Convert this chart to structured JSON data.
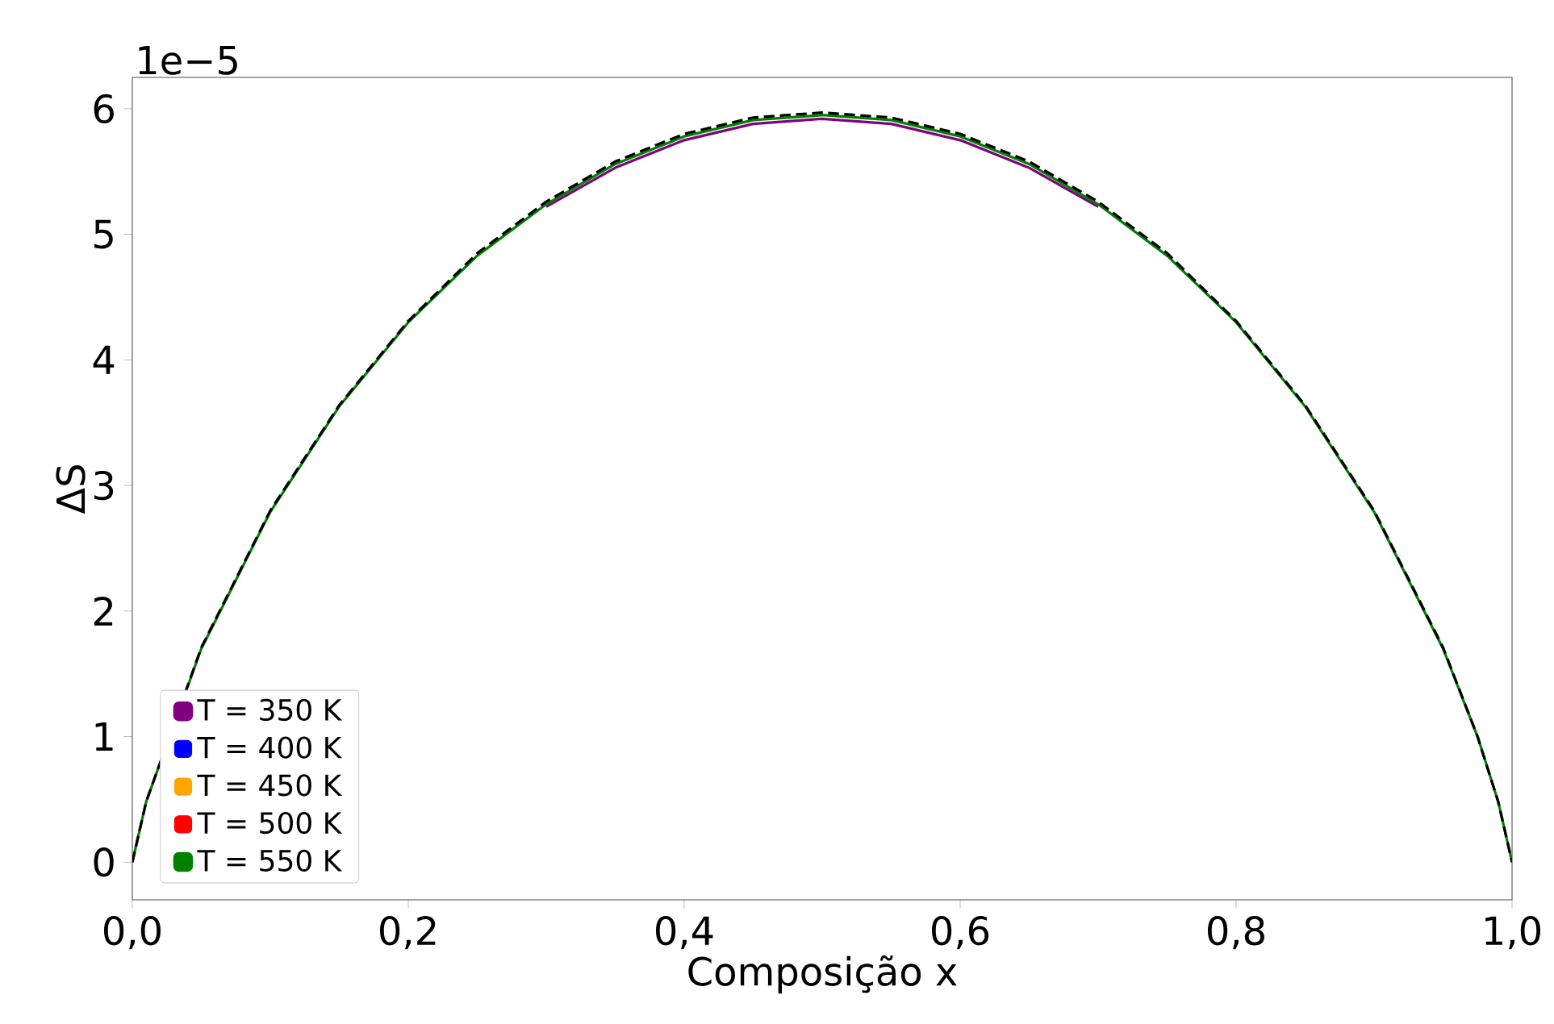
{
  "chart_data": {
    "type": "line",
    "xlabel": "Composição x",
    "ylabel": "ΔS",
    "annotations": [
      "1e−5"
    ],
    "x": [
      0,
      0.01,
      0.025,
      0.05,
      0.1,
      0.15,
      0.2,
      0.25,
      0.3,
      0.35,
      0.4,
      0.45,
      0.5,
      0.55,
      0.6,
      0.65,
      0.7,
      0.75,
      0.8,
      0.85,
      0.9,
      0.95,
      0.975,
      0.99,
      1
    ],
    "series": [
      {
        "name": "T = 350 K",
        "color": "#800080",
        "values": [
          null,
          null,
          null,
          null,
          null,
          null,
          null,
          null,
          5.22,
          5.53,
          5.75,
          5.88,
          5.92,
          5.88,
          5.75,
          5.53,
          5.22,
          null,
          null,
          null,
          null,
          null,
          null,
          null,
          null
        ]
      },
      {
        "name": "T = 400 K",
        "color": "#0000ff",
        "values": [
          null,
          null,
          null,
          null,
          null,
          null,
          null,
          null,
          null,
          null,
          null,
          null,
          null,
          null,
          null,
          null,
          null,
          null,
          null,
          null,
          null,
          null,
          null,
          null,
          null
        ]
      },
      {
        "name": "T = 450 K",
        "color": "#ffa500",
        "values": [
          null,
          null,
          null,
          null,
          null,
          null,
          null,
          null,
          null,
          null,
          null,
          null,
          null,
          null,
          null,
          null,
          null,
          null,
          null,
          null,
          null,
          null,
          null,
          null,
          null
        ]
      },
      {
        "name": "T = 500 K",
        "color": "#ff0000",
        "values": [
          null,
          null,
          null,
          null,
          null,
          null,
          null,
          null,
          null,
          null,
          null,
          null,
          null,
          null,
          null,
          null,
          null,
          null,
          null,
          null,
          null,
          null,
          null,
          null,
          null
        ]
      },
      {
        "name": "T = 550 K",
        "color": "#008000",
        "values": [
          0,
          0.48,
          null,
          1.7,
          2.79,
          3.63,
          4.3,
          4.83,
          5.24,
          5.56,
          5.78,
          5.91,
          5.95,
          5.91,
          5.78,
          5.56,
          5.24,
          4.83,
          4.3,
          3.63,
          2.79,
          1.7,
          1.0,
          0.48,
          0
        ]
      },
      {
        "color": "#000000",
        "line_style": "dashed",
        "values": [
          0,
          0.48,
          null,
          1.71,
          2.8,
          3.64,
          4.31,
          4.85,
          5.26,
          5.58,
          5.8,
          5.93,
          5.97,
          5.93,
          5.8,
          5.58,
          5.26,
          4.85,
          4.31,
          3.64,
          2.8,
          1.71,
          1.0,
          0.48,
          0
        ]
      }
    ],
    "xlim": [
      0,
      1
    ],
    "ylim": [
      -0.3,
      6.25
    ],
    "xticks": [
      {
        "value": 0,
        "label": "0,0"
      },
      {
        "value": 0.2,
        "label": "0,2"
      },
      {
        "value": 0.4,
        "label": "0,4"
      },
      {
        "value": 0.6,
        "label": "0,6"
      },
      {
        "value": 0.8,
        "label": "0,8"
      },
      {
        "value": 1,
        "label": "1,0"
      }
    ],
    "yticks": [
      0,
      1,
      2,
      3,
      4,
      5,
      6
    ],
    "legend": "bottom left",
    "grid": false
  }
}
